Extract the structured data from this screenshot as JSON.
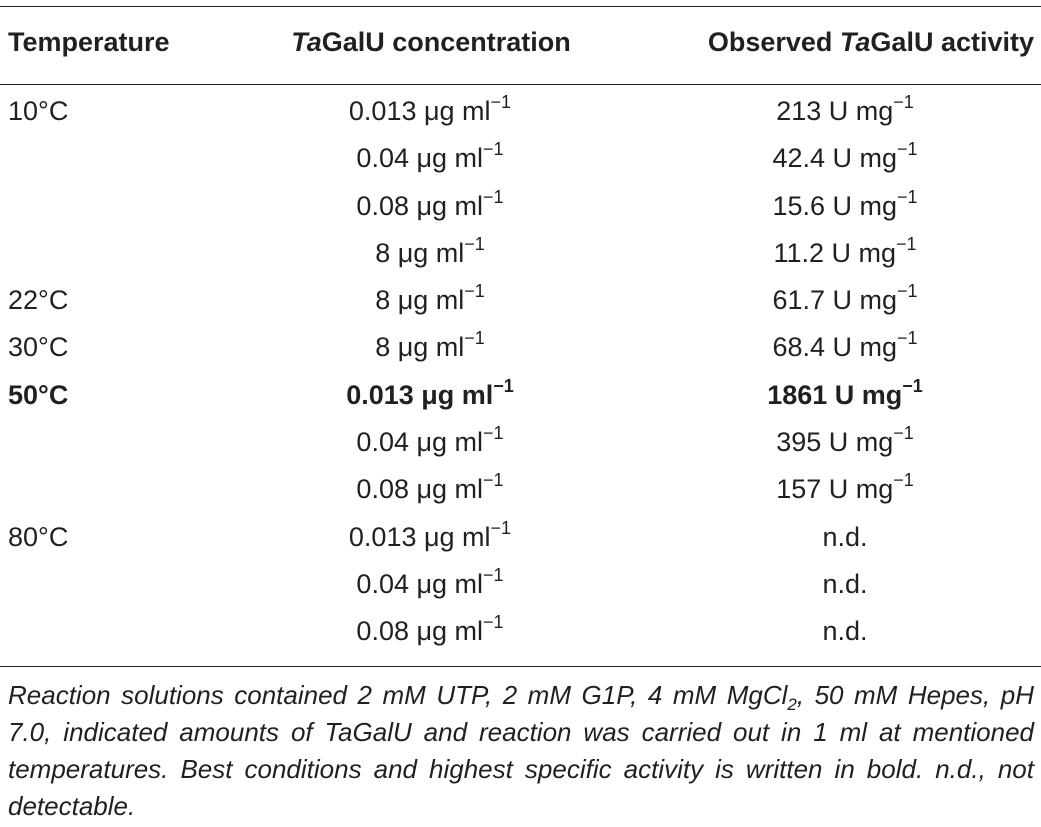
{
  "table": {
    "headers": {
      "temperature": "Temperature",
      "concentration_prefix": "Ta",
      "concentration_suffix": "GalU concentration",
      "activity_prefix": "Observed ",
      "activity_italic": "Ta",
      "activity_suffix": "GalU activity"
    },
    "rows": [
      {
        "temperature": "10°C",
        "conc_value": "0.013 μg ml",
        "conc_exp": "−1",
        "act_value": "213 U mg",
        "act_exp": "−1",
        "bold": false
      },
      {
        "temperature": "",
        "conc_value": "0.04 μg ml",
        "conc_exp": "−1",
        "act_value": "42.4 U mg",
        "act_exp": "−1",
        "bold": false
      },
      {
        "temperature": "",
        "conc_value": "0.08 μg ml",
        "conc_exp": "−1",
        "act_value": "15.6 U mg",
        "act_exp": "−1",
        "bold": false
      },
      {
        "temperature": "",
        "conc_value": "8 μg ml",
        "conc_exp": "−1",
        "act_value": "11.2 U mg",
        "act_exp": "−1",
        "bold": false
      },
      {
        "temperature": "22°C",
        "conc_value": "8 μg ml",
        "conc_exp": "−1",
        "act_value": "61.7 U mg",
        "act_exp": "−1",
        "bold": false
      },
      {
        "temperature": "30°C",
        "conc_value": "8 μg ml",
        "conc_exp": "−1",
        "act_value": "68.4 U mg",
        "act_exp": "−1",
        "bold": false
      },
      {
        "temperature": "50°C",
        "conc_value": "0.013 μg ml",
        "conc_exp": "−1",
        "act_value": "1861 U mg",
        "act_exp": "−1",
        "bold": true
      },
      {
        "temperature": "",
        "conc_value": "0.04 μg ml",
        "conc_exp": "−1",
        "act_value": "395 U mg",
        "act_exp": "−1",
        "bold": false
      },
      {
        "temperature": "",
        "conc_value": "0.08 μg ml",
        "conc_exp": "−1",
        "act_value": "157 U mg",
        "act_exp": "−1",
        "bold": false
      },
      {
        "temperature": "80°C",
        "conc_value": "0.013 μg ml",
        "conc_exp": "−1",
        "act_value": "n.d.",
        "act_exp": "",
        "bold": false
      },
      {
        "temperature": "",
        "conc_value": "0.04 μg ml",
        "conc_exp": "−1",
        "act_value": "n.d.",
        "act_exp": "",
        "bold": false
      },
      {
        "temperature": "",
        "conc_value": "0.08 μg ml",
        "conc_exp": "−1",
        "act_value": "n.d.",
        "act_exp": "",
        "bold": false
      }
    ]
  },
  "footnote": {
    "part1": "Reaction solutions contained 2 mM UTP, 2 mM G1P, 4 mM MgCl",
    "sub": "2",
    "part2": ", 50 mM Hepes, pH 7.0, indicated amounts of TaGalU and reaction was carried out in 1 ml at mentioned temperatures. Best conditions and highest specific activity is written in bold. n.d., not detectable."
  }
}
